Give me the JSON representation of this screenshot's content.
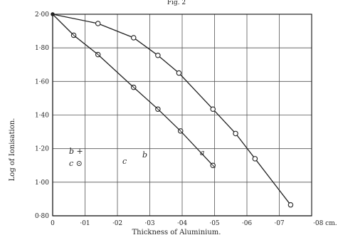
{
  "header_fragment": "Fig. 2",
  "chart_data": {
    "type": "line",
    "xlabel": "Thickness of Aluminium.",
    "ylabel": "Log of Ionisation.",
    "xlim": [
      0,
      0.08
    ],
    "ylim": [
      0.8,
      2.0
    ],
    "x_ticks": [
      0,
      0.01,
      0.02,
      0.03,
      0.04,
      0.05,
      0.06,
      0.07,
      0.08
    ],
    "x_tick_labels": [
      "0",
      "·01",
      "·02",
      "·03",
      "·04",
      "·05",
      "·06",
      "·07",
      "·08 cm."
    ],
    "y_ticks": [
      0.8,
      1.0,
      1.2,
      1.4,
      1.6,
      1.8,
      2.0
    ],
    "y_tick_labels": [
      "0·80",
      "1·00",
      "1·20",
      "1·40",
      "1·60",
      "1·80",
      "2·00"
    ],
    "grid": true,
    "series": [
      {
        "name": "a",
        "x": [
          0.0,
          0.014,
          0.025,
          0.0325,
          0.039,
          0.0495,
          0.0565,
          0.0625,
          0.0735
        ],
        "y": [
          2.0,
          1.945,
          1.86,
          1.755,
          1.65,
          1.435,
          1.29,
          1.14,
          0.865
        ]
      },
      {
        "name": "b, c",
        "x": [
          0.0,
          0.0065,
          0.014,
          0.025,
          0.0325,
          0.0395,
          0.0495
        ],
        "y": [
          2.0,
          1.875,
          1.76,
          1.565,
          1.435,
          1.305,
          1.1
        ]
      }
    ],
    "annotations": [
      "a",
      "b",
      "c",
      "b +",
      "c ⊙"
    ]
  }
}
